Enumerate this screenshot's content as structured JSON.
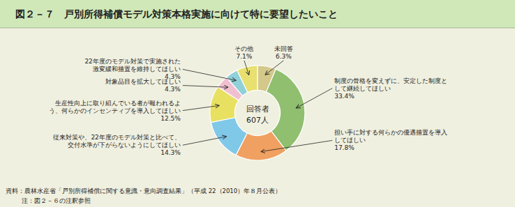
{
  "chart_data": {
    "type": "pie",
    "title": "図２－７　戸別所得補償モデル対策本格実施に向けて特に要望したいこと",
    "categories": [
      "未回答",
      "制度の骨格を変えずに、安定した制度と\nして継続してほしい",
      "担い手に対する何らかの優遇措置を導入\nしてほしい",
      "従来対策や、22年度のモデル対策と比べて、\n交付水準が下がらないようにしてほしい",
      "生産性向上に取り組んでいる者が報われるよ\nう、何らかのインセンティブを導入してほしい",
      "対象品目を拡大してほしい",
      "22年度のモデル対策で実施された\n激変緩和措置を維持してほしい",
      "その他"
    ],
    "values": [
      6.3,
      33.4,
      17.8,
      14.3,
      12.5,
      4.3,
      4.3,
      7.1
    ],
    "value_labels": [
      "6.3%",
      "33.4%",
      "17.8%",
      "14.3%",
      "12.5%",
      "4.3%",
      "4.3%",
      "7.1%"
    ],
    "colors": [
      "#D4C88A",
      "#8FBF6F",
      "#F0A060",
      "#80C8E8",
      "#E8E060",
      "#F0C0D0",
      "#90D0D8",
      "#E8E070"
    ],
    "data_labels": true,
    "annotations": [
      "回答者",
      "607人",
      "資料：農林水産省「戸別所得補償に関する意識・意向調査結果」（平成 22（2010）年８月公表）",
      "　注：図２－６の注釈参照"
    ]
  }
}
